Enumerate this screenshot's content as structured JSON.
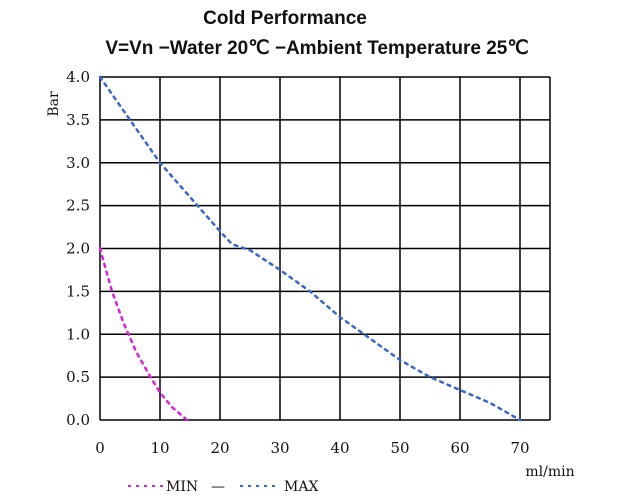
{
  "chart_data": {
    "type": "line",
    "title": "Cold Performance",
    "subtitle": "V=Vn −Water 20℃ −Ambient Temperature 25℃",
    "xlabel": "ml/min",
    "ylabel": "Bar",
    "xlim": [
      0,
      75
    ],
    "ylim": [
      0,
      4.0
    ],
    "x_ticks": [
      0,
      10,
      20,
      30,
      40,
      50,
      60,
      70
    ],
    "y_ticks": [
      0.0,
      0.5,
      1.0,
      1.5,
      2.0,
      2.5,
      3.0,
      3.5,
      4.0
    ],
    "x_tick_labels": [
      "0",
      "10",
      "20",
      "30",
      "40",
      "50",
      "60",
      "70"
    ],
    "y_tick_labels": [
      "0.0",
      "0.5",
      "1.0",
      "1.5",
      "2.0",
      "2.5",
      "3.0",
      "3.5",
      "4.0"
    ],
    "grid": true,
    "legend_position": "bottom",
    "legend_separator": "—",
    "series": [
      {
        "name": "MIN",
        "color": "#e020e0",
        "x": [
          0,
          2,
          4,
          6,
          8,
          10,
          12,
          14.5
        ],
        "y": [
          2.0,
          1.5,
          1.12,
          0.8,
          0.55,
          0.32,
          0.15,
          0.0
        ]
      },
      {
        "name": "MAX",
        "color": "#3a66d0",
        "x": [
          0,
          5,
          10,
          15,
          20,
          22,
          25,
          30,
          35,
          40,
          45,
          50,
          55,
          60,
          65,
          70
        ],
        "y": [
          4.0,
          3.5,
          3.0,
          2.6,
          2.2,
          2.05,
          1.98,
          1.75,
          1.5,
          1.2,
          0.95,
          0.7,
          0.5,
          0.35,
          0.2,
          0.0
        ]
      }
    ]
  }
}
